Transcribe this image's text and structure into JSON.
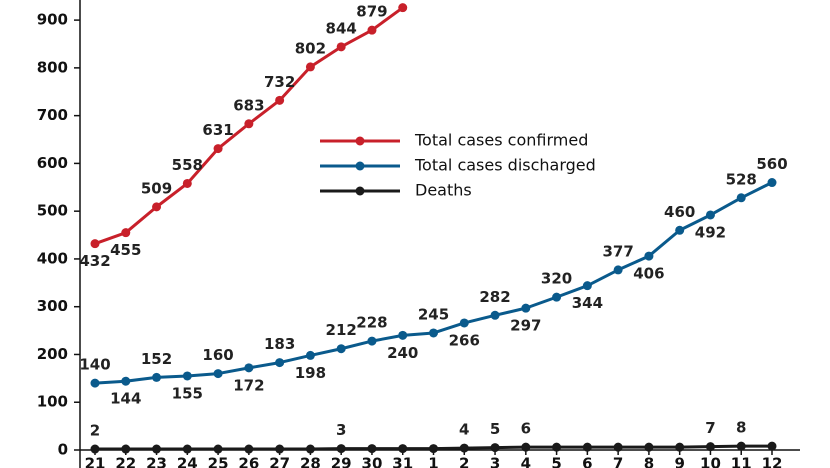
{
  "chart_data": {
    "type": "line",
    "categories": [
      "21",
      "22",
      "23",
      "24",
      "25",
      "26",
      "27",
      "28",
      "29",
      "30",
      "31",
      "1",
      "2",
      "3",
      "4",
      "5",
      "6",
      "7",
      "8",
      "9",
      "10",
      "11",
      "12"
    ],
    "series": [
      {
        "name": "Total cases confirmed",
        "color": "#c8202a",
        "values": [
          432,
          455,
          509,
          558,
          631,
          683,
          732,
          802,
          844,
          879,
          926,
          null,
          null,
          null,
          null,
          null,
          null,
          null,
          null,
          null,
          null,
          null,
          null
        ]
      },
      {
        "name": "Total cases discharged",
        "color": "#0a5a8c",
        "values": [
          140,
          144,
          152,
          155,
          160,
          172,
          183,
          198,
          212,
          228,
          240,
          245,
          266,
          282,
          297,
          320,
          344,
          377,
          406,
          460,
          492,
          528,
          560
        ]
      },
      {
        "name": "Deaths",
        "color": "#1a1a1a",
        "values": [
          2,
          2,
          2,
          2,
          2,
          2,
          2,
          2,
          3,
          3,
          3,
          3,
          4,
          5,
          6,
          6,
          6,
          6,
          6,
          6,
          7,
          8,
          8
        ],
        "value_labels": [
          "2",
          null,
          null,
          null,
          null,
          null,
          null,
          null,
          "3",
          null,
          null,
          null,
          "4",
          "5",
          "6",
          null,
          null,
          null,
          null,
          null,
          "7",
          "8",
          null
        ]
      }
    ],
    "ylim": [
      0,
      940
    ],
    "yticks": [
      0,
      100,
      200,
      300,
      400,
      500,
      600,
      700,
      800,
      900
    ]
  }
}
